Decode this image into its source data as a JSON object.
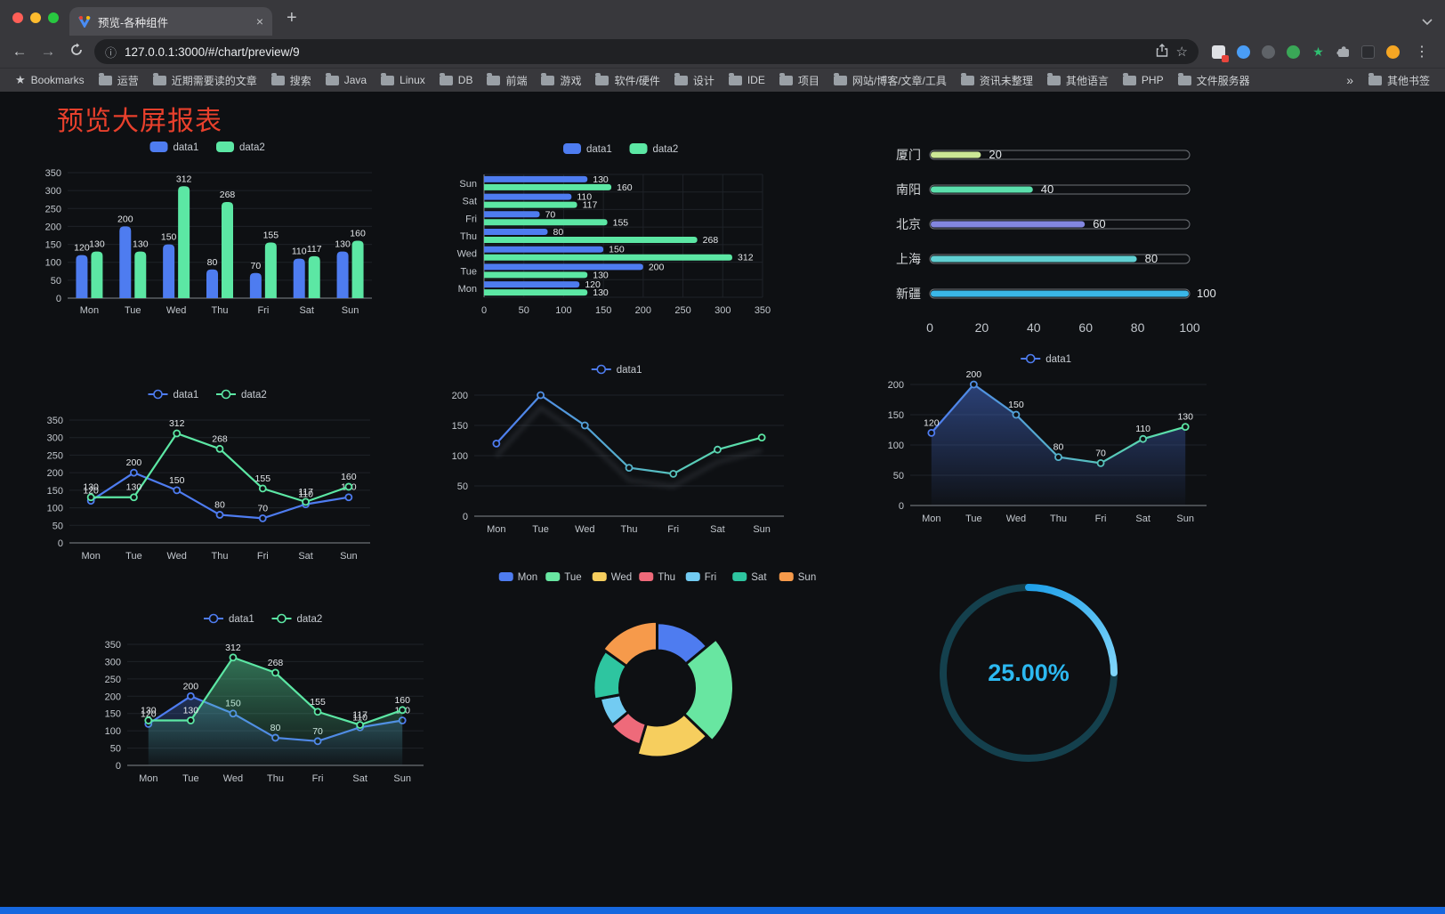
{
  "browser": {
    "tab": {
      "title": "预览-各种组件",
      "close": "×"
    },
    "new_tab": "+",
    "nav": {
      "back": "←",
      "forward": "→"
    },
    "omnibox": {
      "info": "ⓘ",
      "url": "127.0.0.1:3000/#/chart/preview/9"
    },
    "actions": {
      "bookmark": "☆",
      "menu": "⋮"
    },
    "extensions": [
      {
        "name": "extension-badged-icon",
        "shape": "square",
        "color": "#dfe1e5",
        "badge": true
      },
      {
        "name": "extension-blue-icon",
        "shape": "circle",
        "color": "#4a9df5"
      },
      {
        "name": "extension-dark-circle-icon",
        "shape": "circle",
        "color": "#5f6368"
      },
      {
        "name": "extension-green-circle-icon",
        "shape": "circle",
        "color": "#3aa757"
      },
      {
        "name": "extension-green-star-icon",
        "shape": "star",
        "color": "#2fbf71"
      },
      {
        "name": "extensions-puzzle-icon",
        "shape": "puzzle",
        "color": "#a7abb0"
      },
      {
        "name": "dark-reader-icon",
        "shape": "half",
        "color": "#2b2c30"
      },
      {
        "name": "profile-avatar",
        "shape": "circle",
        "color": "#f5a623"
      }
    ],
    "bookmarks_bar": {
      "star_label": "Bookmarks",
      "folders": [
        "运营",
        "近期需要读的文章",
        "搜索",
        "Java",
        "Linux",
        "DB",
        "前端",
        "游戏",
        "软件/硬件",
        "设计",
        "IDE",
        "项目",
        "网站/博客/文章/工具",
        "资讯未整理",
        "其他语言",
        "PHP",
        "文件服务器"
      ],
      "overflow": "»",
      "other": "其他书签"
    }
  },
  "page": {
    "title": "预览大屏报表"
  },
  "colors": {
    "data1": "#4E7CF0",
    "data2": "#5CE7A4",
    "page_bg": "#0e1013",
    "title_red": "#e8402c",
    "bottom_bar": "#1668df"
  },
  "chart_data": [
    {
      "id": "c1",
      "type": "bar",
      "legend": [
        "data1",
        "data2"
      ],
      "categories": [
        "Mon",
        "Tue",
        "Wed",
        "Thu",
        "Fri",
        "Sat",
        "Sun"
      ],
      "series": [
        {
          "name": "data1",
          "color": "#4E7CF0",
          "values": [
            120,
            200,
            150,
            80,
            70,
            110,
            130
          ]
        },
        {
          "name": "data2",
          "color": "#5CE7A4",
          "values": [
            130,
            130,
            312,
            268,
            155,
            117,
            160
          ]
        }
      ],
      "ylim": [
        0,
        350
      ],
      "yticks": [
        0,
        50,
        100,
        150,
        200,
        250,
        300,
        350
      ],
      "show_labels": true
    },
    {
      "id": "c2",
      "type": "hbar",
      "legend": [
        "data1",
        "data2"
      ],
      "categories": [
        "Mon",
        "Tue",
        "Wed",
        "Thu",
        "Fri",
        "Sat",
        "Sun"
      ],
      "series": [
        {
          "name": "data1",
          "color": "#4E7CF0",
          "values": [
            120,
            200,
            150,
            80,
            70,
            110,
            130
          ]
        },
        {
          "name": "data2",
          "color": "#5CE7A4",
          "values": [
            130,
            130,
            312,
            268,
            155,
            117,
            160
          ]
        }
      ],
      "xlim": [
        0,
        350
      ],
      "xticks": [
        0,
        50,
        100,
        150,
        200,
        250,
        300,
        350
      ],
      "show_labels": true
    },
    {
      "id": "c3",
      "type": "progress",
      "max": 100,
      "items": [
        {
          "label": "厦门",
          "value": 20,
          "color": "#CBE795"
        },
        {
          "label": "南阳",
          "value": 40,
          "color": "#5BDFAC"
        },
        {
          "label": "北京",
          "value": 60,
          "color": "#8286DF"
        },
        {
          "label": "上海",
          "value": 80,
          "color": "#60CFD2"
        },
        {
          "label": "新疆",
          "value": 100,
          "color": "#3AB7E8"
        }
      ],
      "xticks": [
        0,
        20,
        40,
        60,
        80,
        100
      ]
    },
    {
      "id": "c4",
      "type": "line",
      "legend": [
        "data1",
        "data2"
      ],
      "categories": [
        "Mon",
        "Tue",
        "Wed",
        "Thu",
        "Fri",
        "Sat",
        "Sun"
      ],
      "series": [
        {
          "name": "data1",
          "color": "#4E7CF0",
          "values": [
            120,
            200,
            150,
            80,
            70,
            110,
            130
          ]
        },
        {
          "name": "data2",
          "color": "#5CE7A4",
          "values": [
            130,
            130,
            312,
            268,
            155,
            117,
            160
          ]
        }
      ],
      "ylim": [
        0,
        350
      ],
      "yticks": [
        0,
        50,
        100,
        150,
        200,
        250,
        300,
        350
      ],
      "show_labels": true
    },
    {
      "id": "c5",
      "type": "line",
      "legend": [
        "data1"
      ],
      "categories": [
        "Mon",
        "Tue",
        "Wed",
        "Thu",
        "Fri",
        "Sat",
        "Sun"
      ],
      "series": [
        {
          "name": "data1",
          "color": "#4E7CF0",
          "gradient": true,
          "gradient_to": "#5CE7A4",
          "values": [
            120,
            200,
            150,
            80,
            70,
            110,
            130
          ]
        }
      ],
      "ylim": [
        0,
        200
      ],
      "yticks": [
        0,
        50,
        100,
        150,
        200
      ],
      "show_labels": false,
      "shadow": true
    },
    {
      "id": "c6",
      "type": "line",
      "legend": [
        "data1"
      ],
      "categories": [
        "Mon",
        "Tue",
        "Wed",
        "Thu",
        "Fri",
        "Sat",
        "Sun"
      ],
      "series": [
        {
          "name": "data1",
          "color": "#4E7CF0",
          "gradient": true,
          "gradient_to": "#5CE7A4",
          "area": true,
          "values": [
            120,
            200,
            150,
            80,
            70,
            110,
            130
          ]
        }
      ],
      "ylim": [
        0,
        200
      ],
      "yticks": [
        0,
        50,
        100,
        150,
        200
      ],
      "show_labels": true
    },
    {
      "id": "c7",
      "type": "line",
      "legend": [
        "data1",
        "data2"
      ],
      "categories": [
        "Mon",
        "Tue",
        "Wed",
        "Thu",
        "Fri",
        "Sat",
        "Sun"
      ],
      "series": [
        {
          "name": "data1",
          "color": "#4E7CF0",
          "area": true,
          "values": [
            120,
            200,
            150,
            80,
            70,
            110,
            130
          ]
        },
        {
          "name": "data2",
          "color": "#5CE7A4",
          "area": true,
          "values": [
            130,
            130,
            312,
            268,
            155,
            117,
            160
          ]
        }
      ],
      "ylim": [
        0,
        350
      ],
      "yticks": [
        0,
        50,
        100,
        150,
        200,
        250,
        300,
        350
      ],
      "show_labels": true
    },
    {
      "id": "c8",
      "type": "pie",
      "rose": true,
      "categories": [
        "Mon",
        "Tue",
        "Wed",
        "Thu",
        "Fri",
        "Sat",
        "Sun"
      ],
      "values": [
        120,
        200,
        150,
        80,
        70,
        110,
        130
      ],
      "colors": [
        "#4E7CF0",
        "#68E6A1",
        "#F6CE5E",
        "#EE6A7A",
        "#72CBF2",
        "#2EC5A0",
        "#F69A4B"
      ],
      "inner_radius": 42
    },
    {
      "id": "c9",
      "type": "gauge",
      "value": 25,
      "label": "25.00%",
      "color": "#2CB9F1",
      "track_color": "#14404d",
      "arc_from": "#1FA0E9",
      "arc_to": "#7FD5FA"
    }
  ]
}
